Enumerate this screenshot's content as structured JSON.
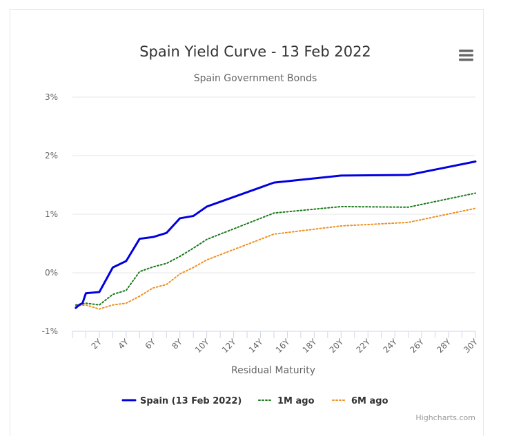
{
  "chart_data": {
    "type": "line",
    "title": "Spain Yield Curve - 13 Feb 2022",
    "subtitle": "Spain Government Bonds",
    "xlabel": "Residual Maturity",
    "ylabel": "",
    "x_ticks": [
      "2Y",
      "4Y",
      "6Y",
      "8Y",
      "10Y",
      "12Y",
      "14Y",
      "16Y",
      "18Y",
      "20Y",
      "22Y",
      "24Y",
      "26Y",
      "28Y",
      "30Y"
    ],
    "y_ticks": [
      "3%",
      "2%",
      "1%",
      "0%",
      "-1%"
    ],
    "xlim": [
      0,
      30
    ],
    "ylim": [
      -1,
      3
    ],
    "grid": true,
    "legend_position": "bottom-center",
    "series": [
      {
        "name": "Spain (13 Feb 2022)",
        "color": "#0000e0",
        "style": "solid",
        "points": [
          [
            0.25,
            -0.6
          ],
          [
            0.5,
            -0.55
          ],
          [
            0.75,
            -0.52
          ],
          [
            1,
            -0.35
          ],
          [
            2,
            -0.33
          ],
          [
            3,
            0.09
          ],
          [
            4,
            0.2
          ],
          [
            5,
            0.58
          ],
          [
            6,
            0.61
          ],
          [
            7,
            0.68
          ],
          [
            8,
            0.93
          ],
          [
            9,
            0.97
          ],
          [
            10,
            1.13
          ],
          [
            15,
            1.54
          ],
          [
            20,
            1.66
          ],
          [
            25,
            1.67
          ],
          [
            30,
            1.9
          ]
        ]
      },
      {
        "name": "1M ago",
        "color": "#1a7a1a",
        "style": "dotted",
        "points": [
          [
            0.25,
            -0.55
          ],
          [
            0.5,
            -0.54
          ],
          [
            1,
            -0.52
          ],
          [
            2,
            -0.55
          ],
          [
            3,
            -0.37
          ],
          [
            4,
            -0.3
          ],
          [
            5,
            0.02
          ],
          [
            6,
            0.1
          ],
          [
            7,
            0.16
          ],
          [
            8,
            0.28
          ],
          [
            9,
            0.42
          ],
          [
            10,
            0.57
          ],
          [
            15,
            1.02
          ],
          [
            20,
            1.13
          ],
          [
            25,
            1.12
          ],
          [
            30,
            1.36
          ]
        ]
      },
      {
        "name": "6M ago",
        "color": "#f09020",
        "style": "dotted",
        "points": [
          [
            0.25,
            -0.57
          ],
          [
            0.5,
            -0.56
          ],
          [
            1,
            -0.55
          ],
          [
            2,
            -0.62
          ],
          [
            3,
            -0.55
          ],
          [
            4,
            -0.52
          ],
          [
            5,
            -0.4
          ],
          [
            6,
            -0.26
          ],
          [
            7,
            -0.2
          ],
          [
            8,
            -0.02
          ],
          [
            9,
            0.09
          ],
          [
            10,
            0.22
          ],
          [
            15,
            0.66
          ],
          [
            20,
            0.8
          ],
          [
            25,
            0.86
          ],
          [
            30,
            1.1
          ]
        ]
      }
    ],
    "credits": "Highcharts.com"
  },
  "icons": {
    "menu": "hamburger-menu-icon"
  }
}
